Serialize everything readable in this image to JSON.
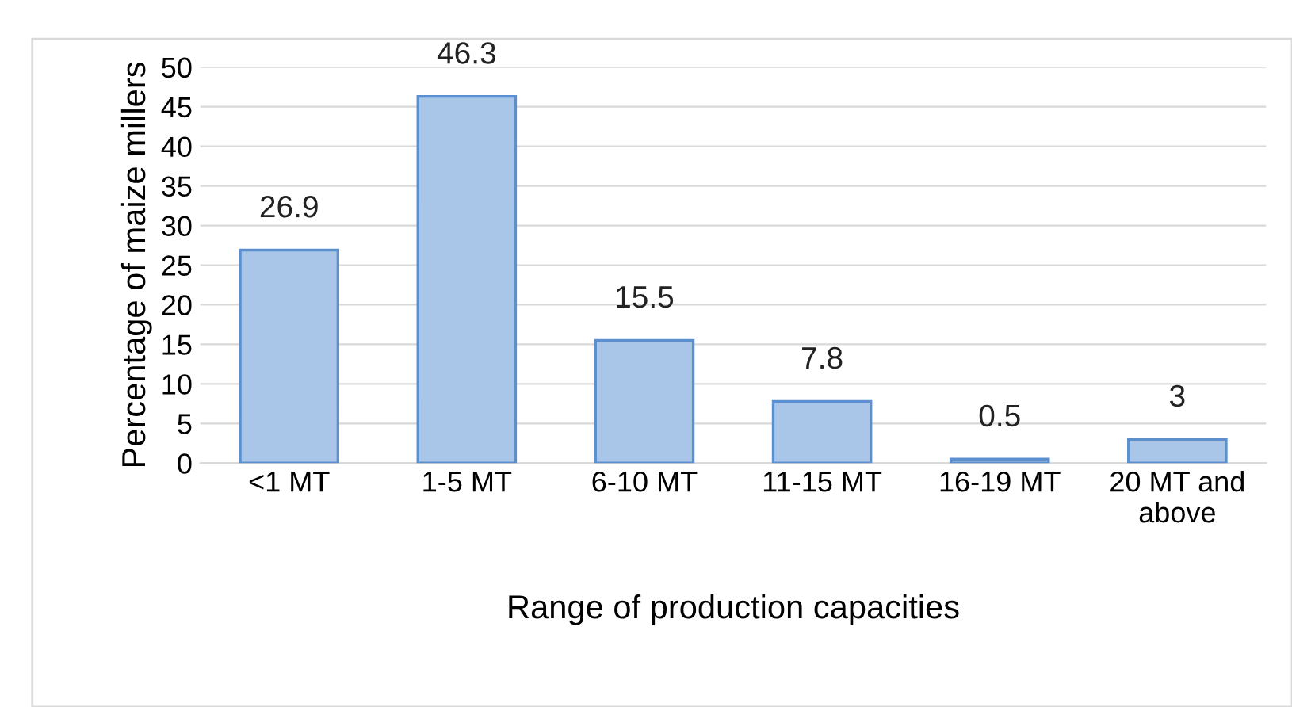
{
  "chart_data": {
    "type": "bar",
    "categories": [
      "<1 MT",
      "1-5 MT",
      "6-10 MT",
      "11-15 MT",
      "16-19 MT",
      "20 MT and\nabove"
    ],
    "values": [
      26.9,
      46.3,
      15.5,
      7.8,
      0.5,
      3
    ],
    "color": "#a9c6e8",
    "ylim": [
      0,
      50
    ],
    "yticks": [
      0,
      5,
      10,
      15,
      20,
      25,
      30,
      35,
      40,
      45,
      50
    ],
    "xlabel": "Range of production capacities",
    "ylabel": "Percentage of maize millers",
    "grid": "y",
    "data_labels": true
  }
}
